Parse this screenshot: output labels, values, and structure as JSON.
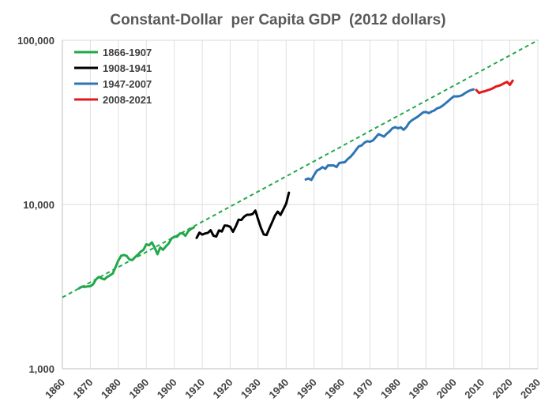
{
  "chart_data": {
    "type": "line",
    "title": "Constant-Dollar  per Capita GDP  (2012 dollars)",
    "xlabel": "",
    "ylabel": "",
    "y_scale": "log",
    "xlim": [
      1860,
      2030
    ],
    "ylim": [
      1000,
      100000
    ],
    "x_ticks": [
      1860,
      1870,
      1880,
      1890,
      1900,
      1910,
      1920,
      1930,
      1940,
      1950,
      1960,
      1970,
      1980,
      1990,
      2000,
      2010,
      2020,
      2030
    ],
    "y_ticks": [
      {
        "value": 1000,
        "label": "1,000"
      },
      {
        "value": 10000,
        "label": "10,000"
      },
      {
        "value": 100000,
        "label": "100,000"
      }
    ],
    "grid": {
      "vertical": true,
      "horizontal": "major"
    },
    "legend_position": "top-left",
    "series": [
      {
        "name": "1866-1907",
        "color": "#21a84a",
        "style": "solid",
        "points": [
          [
            1866,
            3090
          ],
          [
            1867,
            3160
          ],
          [
            1868,
            3150
          ],
          [
            1869,
            3170
          ],
          [
            1870,
            3180
          ],
          [
            1871,
            3270
          ],
          [
            1872,
            3500
          ],
          [
            1873,
            3620
          ],
          [
            1874,
            3550
          ],
          [
            1875,
            3500
          ],
          [
            1876,
            3620
          ],
          [
            1877,
            3700
          ],
          [
            1878,
            3800
          ],
          [
            1879,
            4150
          ],
          [
            1880,
            4560
          ],
          [
            1881,
            4870
          ],
          [
            1882,
            4930
          ],
          [
            1883,
            4860
          ],
          [
            1884,
            4620
          ],
          [
            1885,
            4590
          ],
          [
            1886,
            4780
          ],
          [
            1887,
            4950
          ],
          [
            1888,
            5160
          ],
          [
            1889,
            5300
          ],
          [
            1890,
            5720
          ],
          [
            1891,
            5650
          ],
          [
            1892,
            5880
          ],
          [
            1893,
            5460
          ],
          [
            1894,
            4980
          ],
          [
            1895,
            5480
          ],
          [
            1896,
            5300
          ],
          [
            1897,
            5560
          ],
          [
            1898,
            5790
          ],
          [
            1899,
            6200
          ],
          [
            1900,
            6360
          ],
          [
            1901,
            6370
          ],
          [
            1902,
            6660
          ],
          [
            1903,
            6690
          ],
          [
            1904,
            6450
          ],
          [
            1905,
            6880
          ],
          [
            1906,
            7100
          ],
          [
            1907,
            7250
          ]
        ]
      },
      {
        "name": "1908-1941",
        "color": "#000000",
        "style": "solid",
        "points": [
          [
            1908,
            6260
          ],
          [
            1909,
            6740
          ],
          [
            1910,
            6560
          ],
          [
            1911,
            6660
          ],
          [
            1912,
            6720
          ],
          [
            1913,
            6970
          ],
          [
            1914,
            6460
          ],
          [
            1915,
            6380
          ],
          [
            1916,
            6960
          ],
          [
            1917,
            6850
          ],
          [
            1918,
            7450
          ],
          [
            1919,
            7430
          ],
          [
            1920,
            7310
          ],
          [
            1921,
            6820
          ],
          [
            1922,
            7360
          ],
          [
            1923,
            8080
          ],
          [
            1924,
            8050
          ],
          [
            1925,
            8440
          ],
          [
            1926,
            8660
          ],
          [
            1927,
            8660
          ],
          [
            1928,
            8750
          ],
          [
            1929,
            9180
          ],
          [
            1930,
            8100
          ],
          [
            1931,
            7200
          ],
          [
            1932,
            6570
          ],
          [
            1933,
            6520
          ],
          [
            1934,
            7150
          ],
          [
            1935,
            7800
          ],
          [
            1936,
            8550
          ],
          [
            1937,
            9050
          ],
          [
            1938,
            8640
          ],
          [
            1939,
            9340
          ],
          [
            1940,
            10100
          ],
          [
            1941,
            11800
          ]
        ]
      },
      {
        "name": "1947-2007",
        "color": "#2e75b6",
        "style": "solid",
        "points": [
          [
            1947,
            14200
          ],
          [
            1948,
            14400
          ],
          [
            1949,
            14100
          ],
          [
            1950,
            15100
          ],
          [
            1951,
            16100
          ],
          [
            1952,
            16400
          ],
          [
            1953,
            16900
          ],
          [
            1954,
            16500
          ],
          [
            1955,
            17300
          ],
          [
            1956,
            17300
          ],
          [
            1957,
            17300
          ],
          [
            1958,
            16900
          ],
          [
            1959,
            17900
          ],
          [
            1960,
            18000
          ],
          [
            1961,
            18100
          ],
          [
            1962,
            18900
          ],
          [
            1963,
            19500
          ],
          [
            1964,
            20400
          ],
          [
            1965,
            21500
          ],
          [
            1966,
            22600
          ],
          [
            1967,
            22900
          ],
          [
            1968,
            23800
          ],
          [
            1969,
            24300
          ],
          [
            1970,
            24100
          ],
          [
            1971,
            24500
          ],
          [
            1972,
            25600
          ],
          [
            1973,
            26800
          ],
          [
            1974,
            26400
          ],
          [
            1975,
            25900
          ],
          [
            1976,
            27000
          ],
          [
            1977,
            27900
          ],
          [
            1978,
            29100
          ],
          [
            1979,
            29600
          ],
          [
            1980,
            29100
          ],
          [
            1981,
            29500
          ],
          [
            1982,
            28500
          ],
          [
            1983,
            29600
          ],
          [
            1984,
            31500
          ],
          [
            1985,
            32600
          ],
          [
            1986,
            33400
          ],
          [
            1987,
            34200
          ],
          [
            1988,
            35300
          ],
          [
            1989,
            36400
          ],
          [
            1990,
            36600
          ],
          [
            1991,
            36000
          ],
          [
            1992,
            36800
          ],
          [
            1993,
            37400
          ],
          [
            1994,
            38500
          ],
          [
            1995,
            39000
          ],
          [
            1996,
            40000
          ],
          [
            1997,
            41300
          ],
          [
            1998,
            42700
          ],
          [
            1999,
            44200
          ],
          [
            2000,
            45600
          ],
          [
            2001,
            45500
          ],
          [
            2002,
            45700
          ],
          [
            2003,
            46400
          ],
          [
            2004,
            47700
          ],
          [
            2005,
            48800
          ],
          [
            2006,
            49700
          ],
          [
            2007,
            50200
          ]
        ]
      },
      {
        "name": "2008-2021",
        "color": "#e31a1c",
        "style": "solid",
        "points": [
          [
            2008,
            49800
          ],
          [
            2009,
            47800
          ],
          [
            2010,
            48500
          ],
          [
            2011,
            48900
          ],
          [
            2012,
            49600
          ],
          [
            2013,
            50200
          ],
          [
            2014,
            51100
          ],
          [
            2015,
            52300
          ],
          [
            2016,
            52800
          ],
          [
            2017,
            53600
          ],
          [
            2018,
            54800
          ],
          [
            2019,
            55800
          ],
          [
            2020,
            53500
          ],
          [
            2021,
            56700
          ]
        ]
      },
      {
        "name": "",
        "color": "#21a84a",
        "style": "dashed",
        "points": [
          [
            1860,
            2720
          ],
          [
            2030,
            100000
          ]
        ]
      }
    ]
  }
}
